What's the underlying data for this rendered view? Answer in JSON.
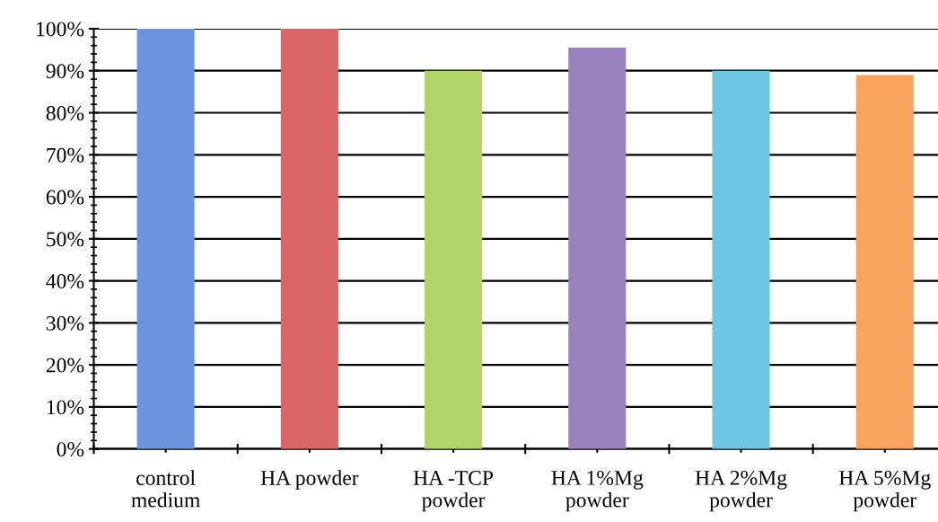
{
  "chart_data": {
    "type": "bar",
    "categories": [
      "control\nmedium",
      "HA powder",
      "HA -TCP\npowder",
      "HA 1%Mg\npowder",
      "HA 2%Mg\npowder",
      "HA 5%Mg\npowder"
    ],
    "values": [
      100,
      100,
      90,
      95.5,
      90,
      89
    ],
    "colors": [
      "#6a95dc",
      "#d96665",
      "#b0d468",
      "#9a82c0",
      "#6cc6e4",
      "#f8a45e"
    ],
    "ylim": [
      0,
      100
    ],
    "yticks": [
      {
        "value": 0,
        "label": "0%"
      },
      {
        "value": 10,
        "label": "10%"
      },
      {
        "value": 20,
        "label": "20%"
      },
      {
        "value": 30,
        "label": "30%"
      },
      {
        "value": 40,
        "label": "40%"
      },
      {
        "value": 50,
        "label": "50%"
      },
      {
        "value": 60,
        "label": "60%"
      },
      {
        "value": 70,
        "label": "70%"
      },
      {
        "value": 80,
        "label": "80%"
      },
      {
        "value": 90,
        "label": "90%"
      },
      {
        "value": 100,
        "label": "100%"
      }
    ],
    "grid": "y"
  }
}
